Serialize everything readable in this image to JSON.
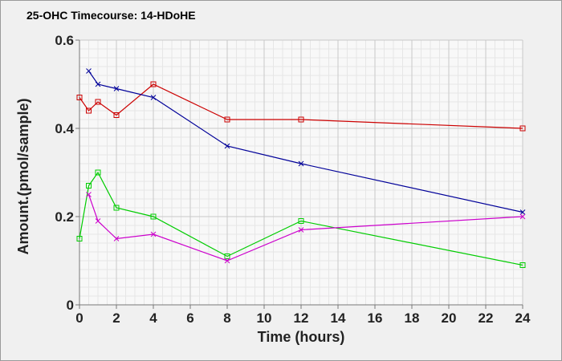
{
  "chart_data": {
    "type": "line",
    "title": "25-OHC Timecourse: 14-HDoHE",
    "xlabel": "Time (hours)",
    "ylabel": "Amount.(pmol/sample)",
    "xlim": [
      0,
      24
    ],
    "ylim": [
      0,
      0.6
    ],
    "x_ticks": [
      "0",
      "2",
      "4",
      "6",
      "8",
      "10",
      "12",
      "14",
      "16",
      "18",
      "20",
      "22",
      "24"
    ],
    "y_ticks": [
      "0",
      "0.2",
      "0.4",
      "0.6"
    ],
    "grid": true,
    "legend": "none",
    "series": [
      {
        "color": "#cc0000",
        "marker": "square",
        "x": [
          0,
          0.5,
          1,
          2,
          4,
          8,
          12,
          24
        ],
        "y": [
          0.47,
          0.44,
          0.46,
          0.43,
          0.5,
          0.42,
          0.42,
          0.4
        ]
      },
      {
        "color": "#000099",
        "marker": "x",
        "x": [
          0.5,
          1,
          2,
          4,
          8,
          12,
          24
        ],
        "y": [
          0.53,
          0.5,
          0.49,
          0.47,
          0.36,
          0.32,
          0.21
        ]
      },
      {
        "color": "#00cc00",
        "marker": "square",
        "x": [
          0,
          0.5,
          1,
          2,
          4,
          8,
          12,
          24
        ],
        "y": [
          0.15,
          0.27,
          0.3,
          0.22,
          0.2,
          0.11,
          0.19,
          0.09
        ]
      },
      {
        "color": "#cc00cc",
        "marker": "x",
        "x": [
          0.5,
          1,
          2,
          4,
          8,
          12,
          24
        ],
        "y": [
          0.25,
          0.19,
          0.15,
          0.16,
          0.1,
          0.17,
          0.2
        ]
      }
    ]
  }
}
